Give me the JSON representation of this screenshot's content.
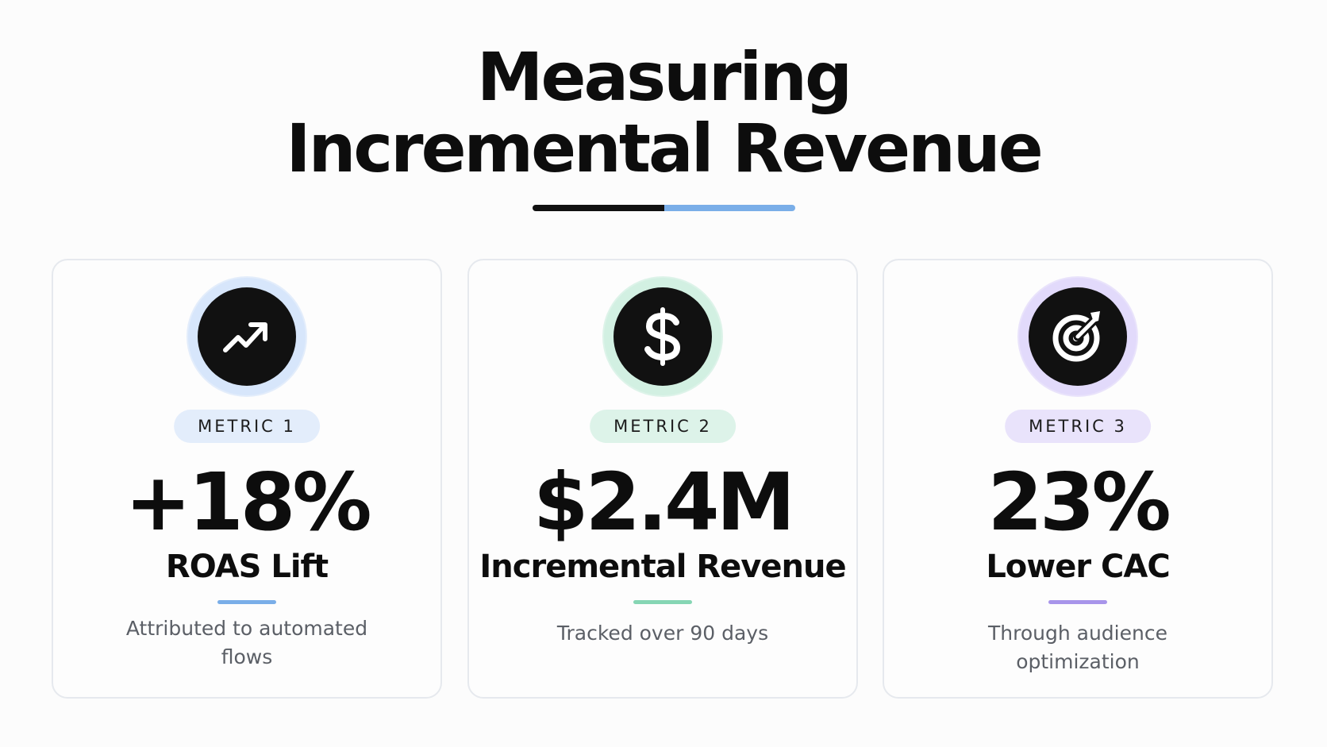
{
  "title": {
    "line1": "Measuring",
    "line2": "Incremental Revenue"
  },
  "colors": {
    "rule_dark": "#111111",
    "rule_light": "#7aaee8",
    "blue_tint": "#e3edfb",
    "blue_ring": "#d7e6fb",
    "blue_accent": "#7aaee8",
    "green_tint": "#ddf3e9",
    "green_ring": "#d2f0e2",
    "green_accent": "#86d6b4",
    "purple_tint": "#e9e3fb",
    "purple_ring": "#e2dafb",
    "purple_accent": "#a895ea"
  },
  "metrics": [
    {
      "icon": "trending-up-icon",
      "badge": "METRIC 1",
      "value": "+18%",
      "label": "ROAS Lift",
      "description": "Attributed to automated flows"
    },
    {
      "icon": "dollar-sign-icon",
      "badge": "METRIC 2",
      "value": "$2.4M",
      "label": "Incremental Revenue",
      "description": "Tracked over 90 days"
    },
    {
      "icon": "target-icon",
      "badge": "METRIC 3",
      "value": "23%",
      "label": "Lower CAC",
      "description": "Through audience optimization"
    }
  ]
}
